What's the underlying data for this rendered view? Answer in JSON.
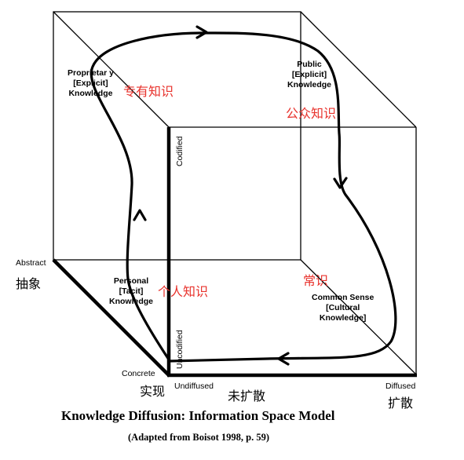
{
  "title": "Knowledge Diffusion: Information Space Model",
  "subtitle": "(Adapted from Boisot 1998, p. 59)",
  "axes": {
    "abstract": "Abstract",
    "abstract_cn": "抽象",
    "concrete": "Concrete",
    "concrete_cn": "实现",
    "undiffused": "Undiffused",
    "undiffused_cn": "未扩散",
    "diffused": "Diffused",
    "diffused_cn": "扩散",
    "codified": "Codified",
    "uncodified": "Uncodified"
  },
  "nodes": {
    "proprietary": {
      "line1": "Proprietar y",
      "line2": "[Explicit]",
      "line3": "Knowledge",
      "cn": "专有知识"
    },
    "public": {
      "line1": "Public",
      "line2": "[Explicit]",
      "line3": "Knowledge",
      "cn": "公众知识"
    },
    "personal": {
      "line1": "Personal",
      "line2": "[Tacit]",
      "line3": "Knowledge",
      "cn": "个人知识"
    },
    "common": {
      "line1": "Common Sense",
      "line2": "[Cultural",
      "line3": "Knowledge]",
      "cn": "常识"
    }
  },
  "colors": {
    "annotation": "#e8322c",
    "lines": "#000000"
  }
}
